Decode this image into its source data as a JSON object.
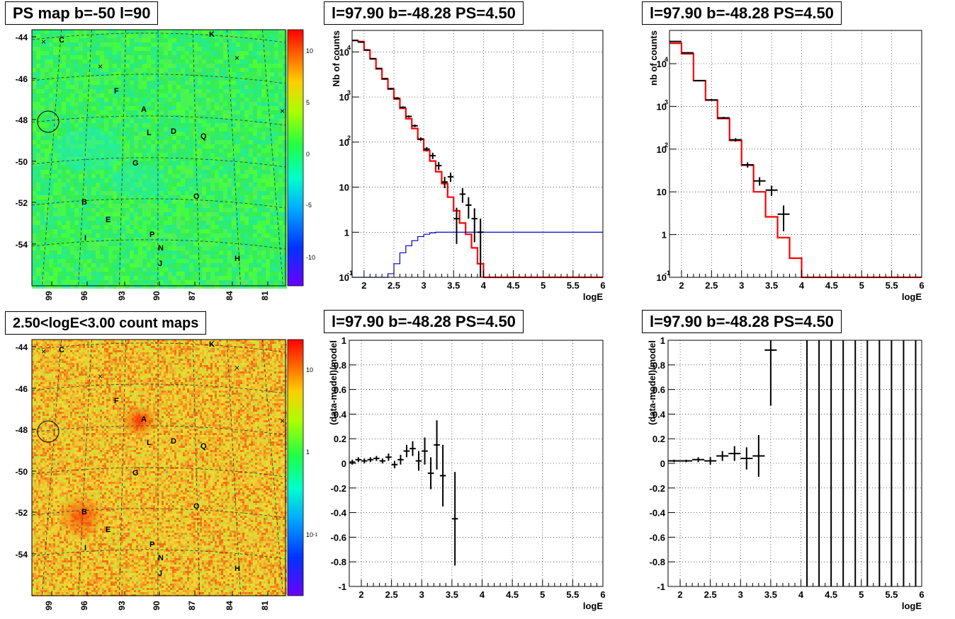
{
  "titles": {
    "psmap": "PS map b=-50 l=90",
    "countmap": "2.50<logE<3.00 count maps",
    "spec_left": "l=97.90 b=-48.28 PS=4.50",
    "spec_right": "l=97.90 b=-48.28 PS=4.50",
    "res_left": "l=97.90 b=-48.28 PS=4.50",
    "res_right": "l=97.90 b=-48.28 PS=4.50"
  },
  "maps": {
    "lat_ticks": [
      "-44",
      "-46",
      "-48",
      "-50",
      "-52",
      "-54"
    ],
    "lon_ticks": [
      "99",
      "96",
      "93",
      "90",
      "87",
      "84",
      "81"
    ],
    "source_labels": [
      "C",
      "K",
      "F",
      "A",
      "L",
      "D",
      "Q",
      "G",
      "B",
      "O",
      "E",
      "P",
      "I",
      "N",
      "H",
      "J"
    ],
    "psmap_palette_ticks": [
      "10",
      "5",
      "0",
      "-5",
      "-10"
    ],
    "countmap_palette_ticks": [
      "10",
      "1",
      "10",
      "-1"
    ]
  },
  "chart_data": [
    {
      "type": "line",
      "panel": "spectrum-left",
      "title": "l=97.90 b=-48.28 PS=4.50",
      "xlabel": "logE",
      "ylabel": "Nb of counts",
      "xlim": [
        1.8,
        6.0
      ],
      "ylim": [
        0.1,
        30000
      ],
      "log_y": true,
      "grid": true,
      "x_ticks": [
        "2",
        "2.5",
        "3",
        "3.5",
        "4",
        "4.5",
        "5",
        "5.5",
        "6"
      ],
      "y_ticks": [
        "10",
        "1",
        "10",
        "10",
        "10",
        "1",
        "10"
      ],
      "bin_edges": [
        1.8,
        1.9,
        2.0,
        2.1,
        2.2,
        2.3,
        2.4,
        2.5,
        2.6,
        2.7,
        2.8,
        2.9,
        3.0,
        3.1,
        3.2,
        3.3,
        3.4,
        3.5,
        3.6,
        3.7,
        3.8,
        3.9,
        4.0,
        4.1,
        4.2,
        4.3,
        4.4,
        4.5,
        4.6,
        4.7,
        4.8,
        4.9,
        5.0,
        5.1,
        5.2,
        5.3,
        5.4,
        5.5,
        5.6,
        5.7,
        5.8,
        5.9,
        6.0
      ],
      "series": [
        {
          "color": "#ff0000",
          "values": [
            18000,
            17000,
            11000,
            7000,
            4200,
            2500,
            1500,
            900,
            560,
            330,
            200,
            115,
            65,
            38,
            22,
            12,
            6,
            3,
            1.6,
            0.9,
            0.45,
            0.2,
            0.1,
            0.1,
            0.1,
            0.1,
            0.1,
            0.1,
            0.1,
            0.1,
            0.1,
            0.1,
            0.1,
            0.1,
            0.1,
            0.1,
            0.1,
            0.1,
            0.1,
            0.1,
            0.1,
            0.1
          ]
        },
        {
          "color": "#0000cc",
          "values": [
            0.1,
            0.1,
            0.1,
            0.1,
            0.1,
            0.1,
            0.12,
            0.2,
            0.35,
            0.5,
            0.65,
            0.8,
            0.9,
            0.97,
            1,
            1,
            1,
            1,
            1,
            1,
            1,
            1,
            1,
            1,
            1,
            1,
            1,
            1,
            1,
            1,
            1,
            1,
            1,
            1,
            1,
            1,
            1,
            1,
            1,
            1,
            1,
            1,
            1
          ]
        }
      ],
      "data_points": [
        {
          "x": 1.85,
          "y": 18000,
          "ylo": 17500,
          "yhi": 18500
        },
        {
          "x": 1.95,
          "y": 16500,
          "ylo": 16000,
          "yhi": 17000
        },
        {
          "x": 2.05,
          "y": 11000,
          "ylo": 10600,
          "yhi": 11400
        },
        {
          "x": 2.15,
          "y": 7100,
          "ylo": 6900,
          "yhi": 7300
        },
        {
          "x": 2.25,
          "y": 4300,
          "ylo": 4150,
          "yhi": 4450
        },
        {
          "x": 2.35,
          "y": 2550,
          "ylo": 2450,
          "yhi": 2650
        },
        {
          "x": 2.45,
          "y": 1530,
          "ylo": 1460,
          "yhi": 1600
        },
        {
          "x": 2.55,
          "y": 940,
          "ylo": 890,
          "yhi": 990
        },
        {
          "x": 2.65,
          "y": 590,
          "ylo": 560,
          "yhi": 620
        },
        {
          "x": 2.75,
          "y": 370,
          "ylo": 350,
          "yhi": 390
        },
        {
          "x": 2.85,
          "y": 230,
          "ylo": 215,
          "yhi": 245
        },
        {
          "x": 2.95,
          "y": 117,
          "ylo": 107,
          "yhi": 127
        },
        {
          "x": 3.05,
          "y": 70,
          "ylo": 62,
          "yhi": 78
        },
        {
          "x": 3.15,
          "y": 50,
          "ylo": 42,
          "yhi": 58
        },
        {
          "x": 3.25,
          "y": 30,
          "ylo": 24,
          "yhi": 36
        },
        {
          "x": 3.35,
          "y": 13,
          "ylo": 9.5,
          "yhi": 17
        },
        {
          "x": 3.45,
          "y": 17,
          "ylo": 13,
          "yhi": 21
        },
        {
          "x": 3.55,
          "y": 2,
          "ylo": 0.55,
          "yhi": 3.5
        },
        {
          "x": 3.65,
          "y": 7,
          "ylo": 4.5,
          "yhi": 9.5
        },
        {
          "x": 3.75,
          "y": 4,
          "ylo": 2,
          "yhi": 6
        },
        {
          "x": 3.85,
          "y": 2,
          "ylo": 0.6,
          "yhi": 3.4
        },
        {
          "x": 3.95,
          "y": 1,
          "ylo": 0.1,
          "yhi": 2
        }
      ]
    },
    {
      "type": "line",
      "panel": "spectrum-right",
      "title": "l=97.90 b=-48.28 PS=4.50",
      "xlabel": "logE",
      "ylabel": "nb of counts",
      "xlim": [
        1.8,
        6.0
      ],
      "ylim": [
        0.1,
        60000
      ],
      "log_y": true,
      "grid": true,
      "x_ticks": [
        "2",
        "2.5",
        "3",
        "3.5",
        "4",
        "4.5",
        "5",
        "5.5",
        "6"
      ],
      "y_ticks": [
        "10",
        "1",
        "10",
        "10",
        "10",
        "1",
        "10"
      ],
      "bin_edges": [
        1.8,
        2.0,
        2.2,
        2.4,
        2.6,
        2.8,
        3.0,
        3.2,
        3.4,
        3.6,
        3.8,
        4.0,
        4.2,
        4.4,
        4.6,
        4.8,
        5.0,
        5.2,
        5.4,
        5.6,
        5.8,
        6.0
      ],
      "series": [
        {
          "color": "#ff0000",
          "values": [
            30000,
            17000,
            4000,
            1400,
            520,
            160,
            42,
            10,
            2.6,
            0.85,
            0.28,
            0.1,
            0.1,
            0.1,
            0.1,
            0.1,
            0.1,
            0.1,
            0.1,
            0.1,
            0.1
          ]
        }
      ],
      "data_points": [
        {
          "x": 1.9,
          "y": 33000,
          "ylo": 32000,
          "yhi": 34000
        },
        {
          "x": 2.1,
          "y": 18000,
          "ylo": 17500,
          "yhi": 18500
        },
        {
          "x": 2.3,
          "y": 4000,
          "ylo": 3850,
          "yhi": 4150
        },
        {
          "x": 2.5,
          "y": 1420,
          "ylo": 1360,
          "yhi": 1480
        },
        {
          "x": 2.7,
          "y": 540,
          "ylo": 510,
          "yhi": 570
        },
        {
          "x": 2.9,
          "y": 165,
          "ylo": 150,
          "yhi": 180
        },
        {
          "x": 3.1,
          "y": 43,
          "ylo": 37,
          "yhi": 49
        },
        {
          "x": 3.3,
          "y": 18,
          "ylo": 14,
          "yhi": 22
        },
        {
          "x": 3.5,
          "y": 11,
          "ylo": 8,
          "yhi": 14
        },
        {
          "x": 3.7,
          "y": 3,
          "ylo": 1.2,
          "yhi": 4.8
        }
      ]
    },
    {
      "type": "scatter",
      "panel": "residual-left",
      "title": "l=97.90 b=-48.28 PS=4.50",
      "xlabel": "logE",
      "ylabel": "(data-model)/model",
      "xlim": [
        1.8,
        6.0
      ],
      "ylim": [
        -1,
        1
      ],
      "grid": true,
      "x_ticks": [
        "2",
        "2.5",
        "3",
        "3.5",
        "4",
        "4.5",
        "5",
        "5.5",
        "6"
      ],
      "y_ticks": [
        "-1",
        "-0.8",
        "-0.6",
        "-0.4",
        "-0.2",
        "0",
        "0.2",
        "0.4",
        "0.6",
        "0.8",
        "1"
      ],
      "points": [
        {
          "x": 1.85,
          "y": 0.01,
          "e": 0.02
        },
        {
          "x": 1.95,
          "y": 0.03,
          "e": 0.02
        },
        {
          "x": 2.05,
          "y": 0.02,
          "e": 0.02
        },
        {
          "x": 2.15,
          "y": 0.03,
          "e": 0.02
        },
        {
          "x": 2.25,
          "y": 0.04,
          "e": 0.02
        },
        {
          "x": 2.35,
          "y": 0.02,
          "e": 0.02
        },
        {
          "x": 2.45,
          "y": 0.05,
          "e": 0.03
        },
        {
          "x": 2.55,
          "y": -0.01,
          "e": 0.03
        },
        {
          "x": 2.65,
          "y": 0.03,
          "e": 0.04
        },
        {
          "x": 2.75,
          "y": 0.1,
          "e": 0.05
        },
        {
          "x": 2.85,
          "y": 0.12,
          "e": 0.06
        },
        {
          "x": 2.95,
          "y": 0.02,
          "e": 0.08
        },
        {
          "x": 3.05,
          "y": 0.1,
          "e": 0.11
        },
        {
          "x": 3.15,
          "y": -0.08,
          "e": 0.13
        },
        {
          "x": 3.25,
          "y": 0.15,
          "e": 0.2
        },
        {
          "x": 3.35,
          "y": -0.1,
          "e": 0.25
        },
        {
          "x": 3.55,
          "y": -0.45,
          "e": 0.38
        }
      ]
    },
    {
      "type": "scatter",
      "panel": "residual-right",
      "title": "l=97.90 b=-48.28 PS=4.50",
      "xlabel": "logE",
      "ylabel": "(data-model)/model",
      "xlim": [
        1.8,
        6.0
      ],
      "ylim": [
        -1,
        1
      ],
      "grid": true,
      "x_ticks": [
        "2",
        "2.5",
        "3",
        "3.5",
        "4",
        "4.5",
        "5",
        "5.5",
        "6"
      ],
      "y_ticks": [
        "-1",
        "-0.8",
        "-0.6",
        "-0.4",
        "-0.2",
        "0",
        "0.2",
        "0.4",
        "0.6",
        "0.8",
        "1"
      ],
      "points": [
        {
          "x": 1.9,
          "y": 0.02,
          "e": 0.01
        },
        {
          "x": 2.1,
          "y": 0.02,
          "e": 0.01
        },
        {
          "x": 2.3,
          "y": 0.03,
          "e": 0.02
        },
        {
          "x": 2.5,
          "y": 0.02,
          "e": 0.03
        },
        {
          "x": 2.7,
          "y": 0.06,
          "e": 0.04
        },
        {
          "x": 2.9,
          "y": 0.08,
          "e": 0.06
        },
        {
          "x": 3.1,
          "y": 0.04,
          "e": 0.09
        },
        {
          "x": 3.3,
          "y": 0.06,
          "e": 0.17
        },
        {
          "x": 3.5,
          "y": 0.92,
          "e": 0.45
        }
      ],
      "full_bars_x": [
        4.1,
        4.3,
        4.5,
        4.7,
        4.9,
        5.1,
        5.3,
        5.5,
        5.7,
        5.9
      ]
    }
  ]
}
